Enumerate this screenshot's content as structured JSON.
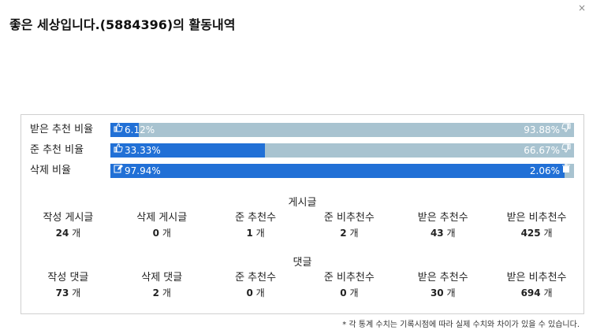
{
  "title": "좋은 세상입니다.(5884396)의 활동내역",
  "close_icon": "×",
  "bars": [
    {
      "label": "받은 추천 비율",
      "left_text": "6.12%",
      "right_text": "93.88%",
      "fill": 0.0612,
      "left_icon": "thumbs-up-icon",
      "right_icon": "thumbs-down-icon"
    },
    {
      "label": "준 추천 비율",
      "left_text": "33.33%",
      "right_text": "66.67%",
      "fill": 0.3333,
      "left_icon": "thumbs-up-icon",
      "right_icon": "thumbs-down-icon"
    },
    {
      "label": "삭제 비율",
      "left_text": "97.94%",
      "right_text": "2.06%",
      "fill": 0.9794,
      "left_icon": "edit-icon",
      "right_icon": "trash-icon"
    }
  ],
  "posts": {
    "title": "게시글",
    "stats": [
      {
        "label": "작성 게시글",
        "value": "24",
        "unit": "개"
      },
      {
        "label": "삭제 게시글",
        "value": "0",
        "unit": "개"
      },
      {
        "label": "준 추천수",
        "value": "1",
        "unit": "개"
      },
      {
        "label": "준 비추천수",
        "value": "2",
        "unit": "개"
      },
      {
        "label": "받은 추천수",
        "value": "43",
        "unit": "개"
      },
      {
        "label": "받은 비추천수",
        "value": "425",
        "unit": "개"
      }
    ]
  },
  "comments": {
    "title": "댓글",
    "stats": [
      {
        "label": "작성 댓글",
        "value": "73",
        "unit": "개"
      },
      {
        "label": "삭제 댓글",
        "value": "2",
        "unit": "개"
      },
      {
        "label": "준 추천수",
        "value": "0",
        "unit": "개"
      },
      {
        "label": "준 비추천수",
        "value": "0",
        "unit": "개"
      },
      {
        "label": "받은 추천수",
        "value": "30",
        "unit": "개"
      },
      {
        "label": "받은 비추천수",
        "value": "694",
        "unit": "개"
      }
    ]
  },
  "footnote": "* 각 통계 수치는 기록시점에 따라 실제 수치와 차이가 있을 수 있습니다.",
  "colors": {
    "fill": "#2170d6",
    "track": "#a8c3d0"
  }
}
